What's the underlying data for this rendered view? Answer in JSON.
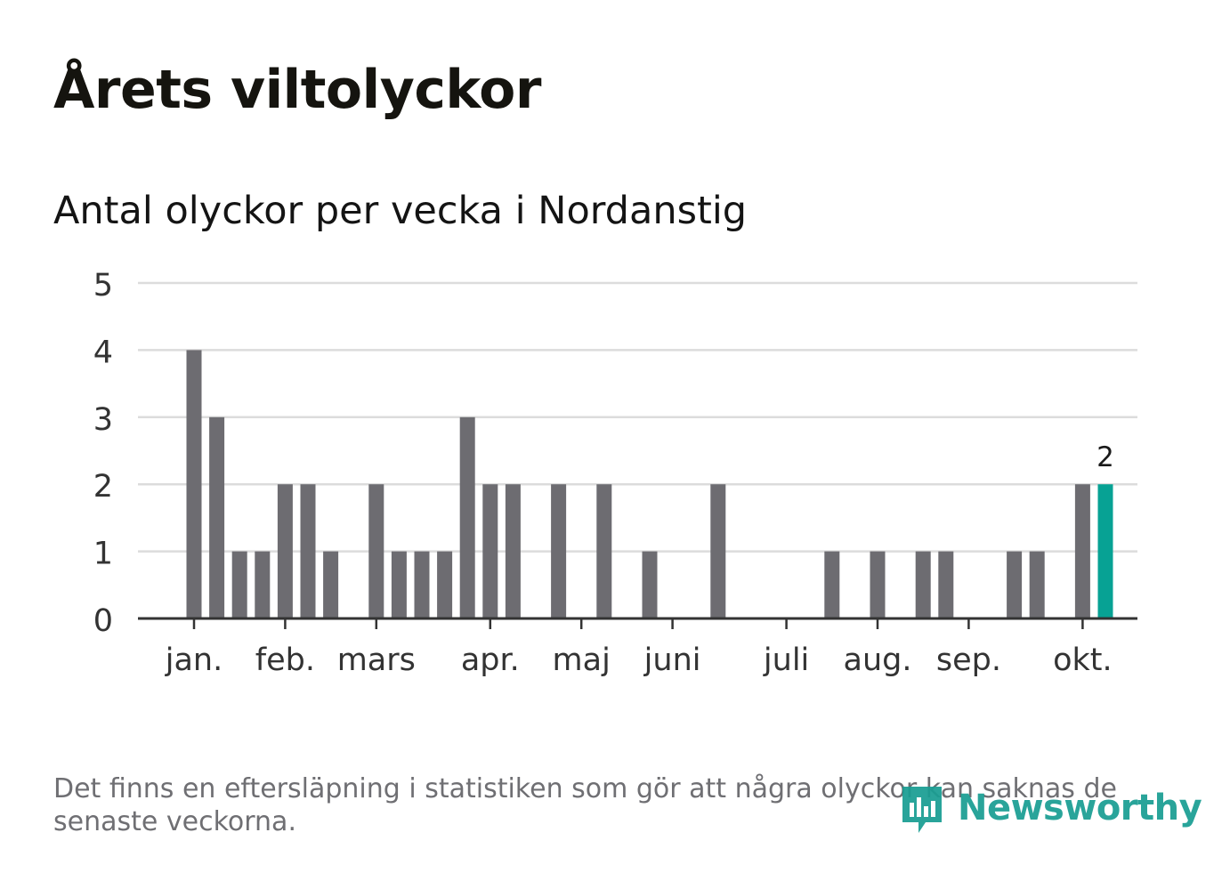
{
  "header": {
    "title": "Årets viltolyckor",
    "subtitle": "Antal olyckor per vecka i Nordanstig"
  },
  "footer": {
    "note": "Det finns en eftersläpning i statistiken som gör att några olyckor kan saknas de senaste veckorna.",
    "logo_text": "Newsworthy"
  },
  "colors": {
    "bar": "#6d6c71",
    "highlight": "#07a294",
    "grid": "#dcdcdc",
    "axis": "#333333",
    "logo": "#199e93"
  },
  "chart_data": {
    "type": "bar",
    "title": "Antal olyckor per vecka i Nordanstig",
    "xlabel": "",
    "ylabel": "",
    "ylim": [
      0,
      5
    ],
    "yticks": [
      0,
      1,
      2,
      3,
      4,
      5
    ],
    "grid": true,
    "weeks": [
      1,
      2,
      3,
      4,
      5,
      6,
      7,
      8,
      9,
      10,
      11,
      12,
      13,
      14,
      15,
      16,
      17,
      18,
      19,
      20,
      21,
      22,
      23,
      24,
      25,
      26,
      27,
      28,
      29,
      30,
      31,
      32,
      33,
      34,
      35,
      36,
      37,
      38,
      39,
      40,
      41
    ],
    "values": [
      4,
      3,
      1,
      1,
      2,
      2,
      1,
      0,
      2,
      1,
      1,
      1,
      3,
      2,
      2,
      0,
      2,
      0,
      2,
      0,
      1,
      0,
      0,
      2,
      0,
      0,
      0,
      0,
      1,
      0,
      1,
      0,
      1,
      1,
      0,
      0,
      1,
      1,
      0,
      2,
      2
    ],
    "highlight_index": 40,
    "highlight_label": "2",
    "month_ticks": [
      {
        "label": "jan.",
        "week": 1
      },
      {
        "label": "feb.",
        "week": 5
      },
      {
        "label": "mars",
        "week": 9
      },
      {
        "label": "apr.",
        "week": 14
      },
      {
        "label": "maj",
        "week": 18
      },
      {
        "label": "juni",
        "week": 22
      },
      {
        "label": "juli",
        "week": 27
      },
      {
        "label": "aug.",
        "week": 31
      },
      {
        "label": "sep.",
        "week": 35
      },
      {
        "label": "okt.",
        "week": 40
      }
    ]
  }
}
